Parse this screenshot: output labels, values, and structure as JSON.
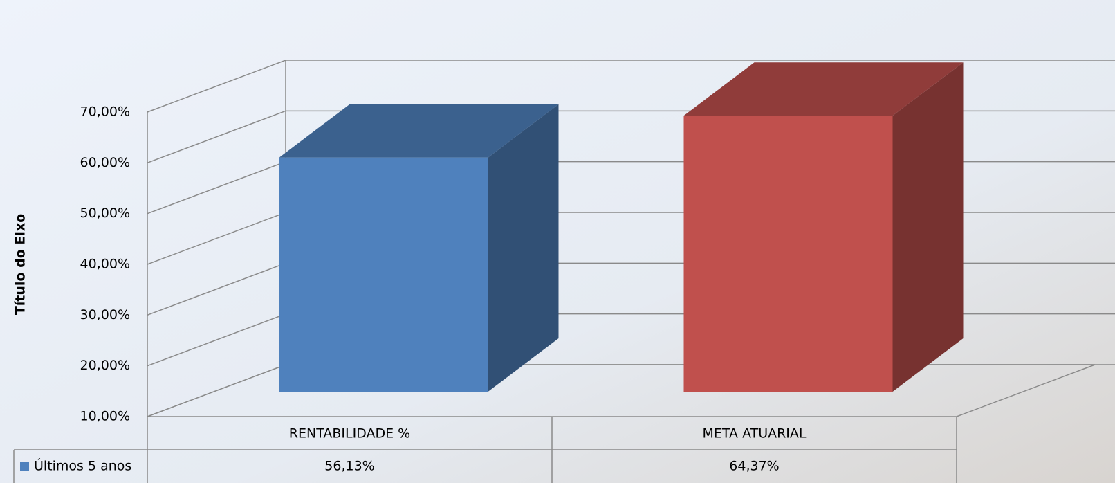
{
  "chart_data": {
    "type": "bar3d",
    "y_axis_label": "Título do Eixo",
    "categories": [
      "RENTABILIDADE %",
      "META ATUARIAL"
    ],
    "series": [
      {
        "name": "Últimos 5 anos",
        "color": "#4f81bd",
        "colors": [
          "#4f81bd",
          "#c0504d"
        ],
        "values": [
          56.13,
          64.37
        ],
        "value_labels": [
          "56,13%",
          "64,37%"
        ]
      }
    ],
    "ylim": [
      10,
      70
    ],
    "yticks": [
      {
        "value": 10,
        "label": "10,00%"
      },
      {
        "value": 20,
        "label": "20,00%"
      },
      {
        "value": 30,
        "label": "30,00%"
      },
      {
        "value": 40,
        "label": "40,00%"
      },
      {
        "value": 50,
        "label": "50,00%"
      },
      {
        "value": 60,
        "label": "60,00%"
      },
      {
        "value": 70,
        "label": "70,00%"
      }
    ],
    "grid": true
  }
}
